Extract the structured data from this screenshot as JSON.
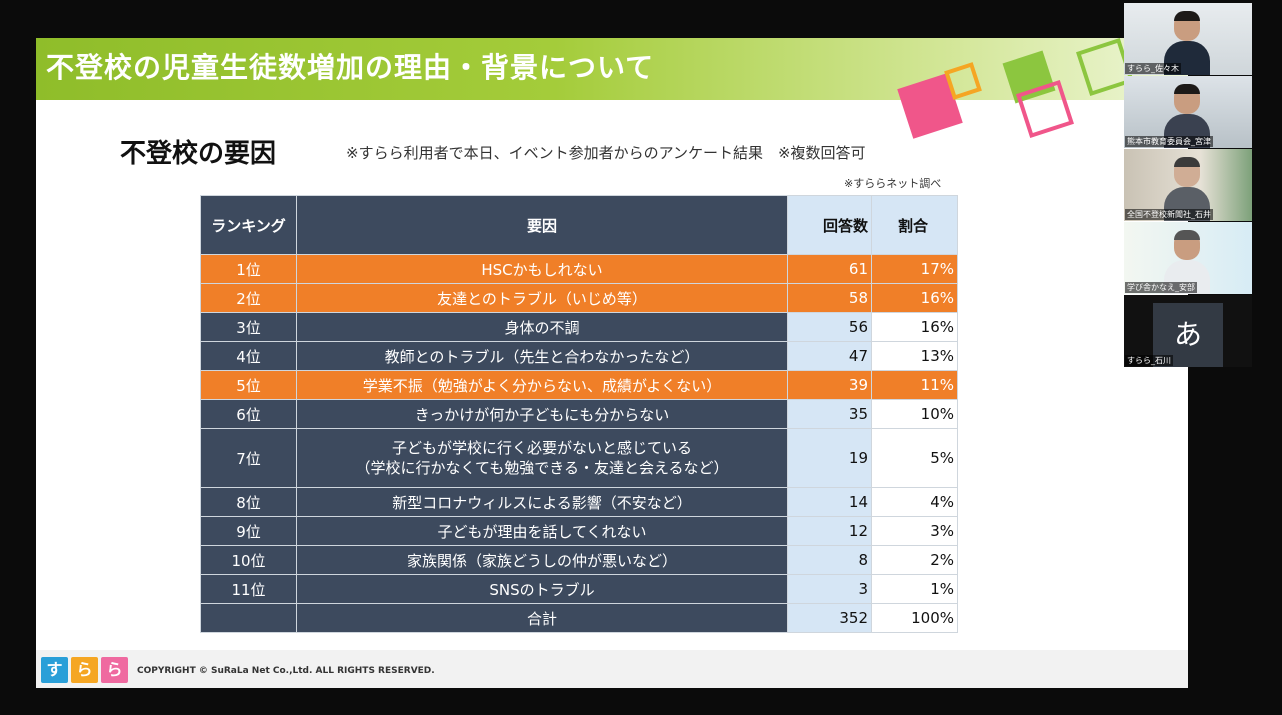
{
  "slide": {
    "title": "不登校の児童生徒数増加の理由・背景について",
    "subtitle": "不登校の要因",
    "note": "※すらら利用者で本日、イベント参加者からのアンケート結果　※複数回答可",
    "source_note": "※すららネット調べ",
    "table": {
      "headers": [
        "ランキング",
        "要因",
        "回答数",
        "割合"
      ],
      "rows": [
        {
          "rank": "1位",
          "reason": "HSCかもしれない",
          "count": "61",
          "pct": "17%"
        },
        {
          "rank": "2位",
          "reason": "友達とのトラブル（いじめ等）",
          "count": "58",
          "pct": "16%"
        },
        {
          "rank": "3位",
          "reason": "身体の不調",
          "count": "56",
          "pct": "16%"
        },
        {
          "rank": "4位",
          "reason": "教師とのトラブル（先生と合わなかったなど）",
          "count": "47",
          "pct": "13%"
        },
        {
          "rank": "5位",
          "reason": "学業不振（勉強がよく分からない、成績がよくない）",
          "count": "39",
          "pct": "11%"
        },
        {
          "rank": "6位",
          "reason": "きっかけが何か子どもにも分からない",
          "count": "35",
          "pct": "10%"
        },
        {
          "rank": "7位",
          "reason_line1": "子どもが学校に行く必要がないと感じている",
          "reason_line2": "（学校に行かなくても勉強できる・友達と会えるなど）",
          "count": "19",
          "pct": "5%"
        },
        {
          "rank": "8位",
          "reason": "新型コロナウィルスによる影響（不安など）",
          "count": "14",
          "pct": "4%"
        },
        {
          "rank": "9位",
          "reason": "子どもが理由を話してくれない",
          "count": "12",
          "pct": "3%"
        },
        {
          "rank": "10位",
          "reason": "家族関係（家族どうしの仲が悪いなど）",
          "count": "8",
          "pct": "2%"
        },
        {
          "rank": "11位",
          "reason": "SNSのトラブル",
          "count": "3",
          "pct": "1%"
        }
      ],
      "total": {
        "label": "合計",
        "count": "352",
        "pct": "100%"
      }
    },
    "footer": {
      "logo_chars": [
        "す",
        "ら",
        "ら"
      ],
      "copyright": "COPYRIGHT © SuRaLa Net Co.,Ltd. ALL RIGHTS RESERVED."
    }
  },
  "participants": [
    {
      "name": "すらら_佐々木"
    },
    {
      "name": "熊本市教育委員会_宮津"
    },
    {
      "name": "全国不登校新聞社_石井"
    },
    {
      "name": "学び舎かなえ_安部"
    },
    {
      "name": "すらら_石川",
      "avatar_char": "あ"
    }
  ],
  "colors": {
    "banner": "#a4cc3a",
    "header_cell": "#3d4a5e",
    "highlight_row": "#f07f28",
    "count_cell": "#d6e6f5"
  }
}
